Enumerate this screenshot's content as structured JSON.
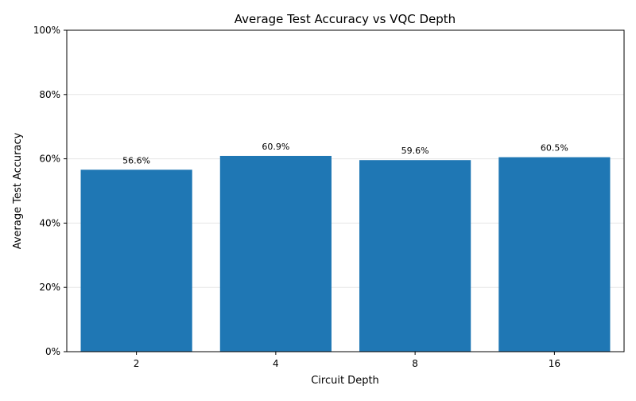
{
  "chart_data": {
    "type": "bar",
    "title": "Average Test Accuracy vs VQC Depth",
    "xlabel": "Circuit Depth",
    "ylabel": "Average Test Accuracy",
    "categories": [
      "2",
      "4",
      "8",
      "16"
    ],
    "values": [
      0.566,
      0.609,
      0.596,
      0.605
    ],
    "value_labels": [
      "56.6%",
      "60.9%",
      "59.6%",
      "60.5%"
    ],
    "ylim": [
      0,
      1
    ],
    "yticks": [
      0,
      0.2,
      0.4,
      0.6,
      0.8,
      1.0
    ],
    "ytick_labels": [
      "0%",
      "20%",
      "40%",
      "60%",
      "80%",
      "100%"
    ],
    "grid": "horizontal",
    "bar_color": "#1f77b4",
    "grid_color": "#e6e6e6"
  }
}
